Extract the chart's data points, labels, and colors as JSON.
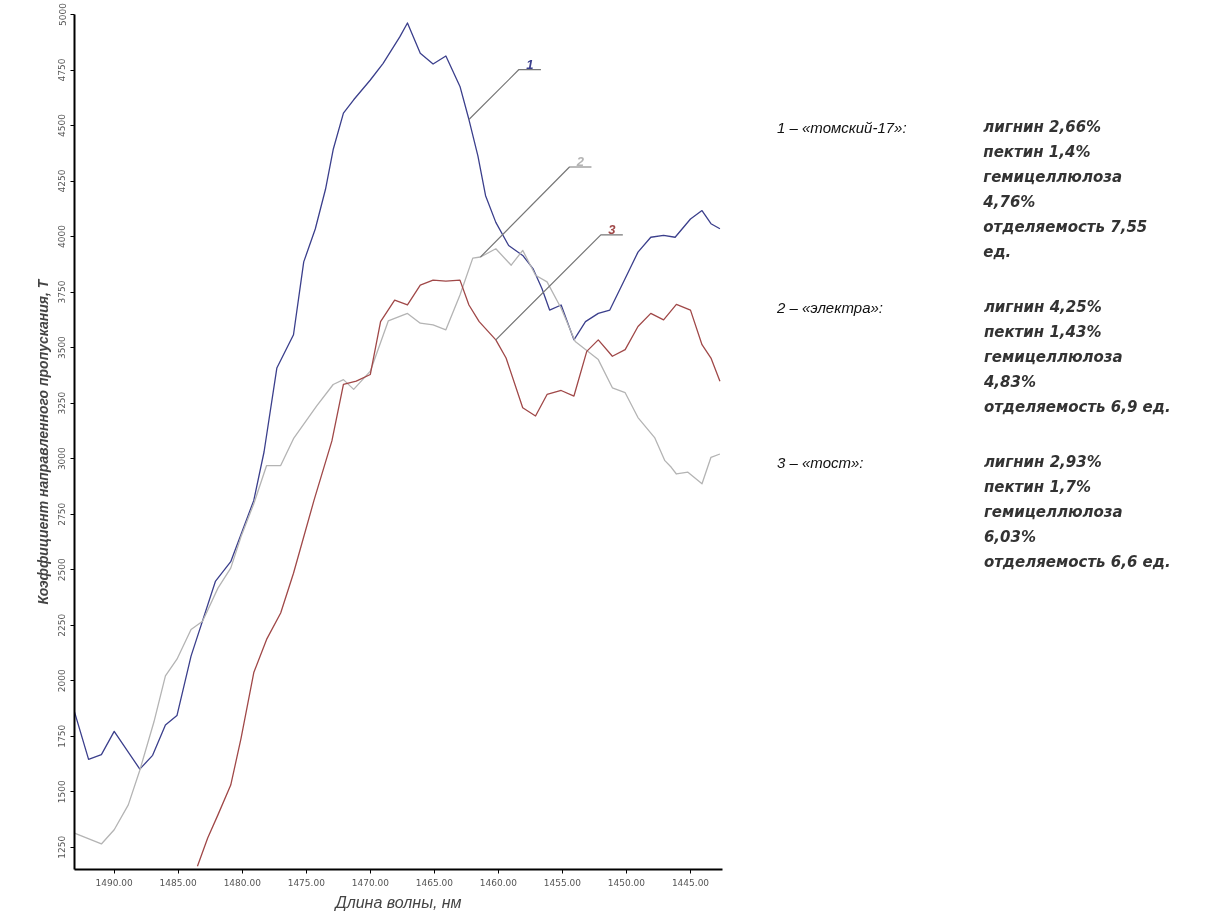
{
  "chart_data": {
    "type": "line",
    "xlabel": "Длина волны, нм",
    "ylabel": "Коэффициент направленного пропускания, T",
    "xlim": [
      1493.1,
      1442.5
    ],
    "ylim": [
      1150,
      5000
    ],
    "xticks": [
      {
        "value": 1490,
        "label": "1490.00"
      },
      {
        "value": 1485,
        "label": "1485.00"
      },
      {
        "value": 1480,
        "label": "1480.00"
      },
      {
        "value": 1475,
        "label": "1475.00"
      },
      {
        "value": 1470,
        "label": "1470.00"
      },
      {
        "value": 1465,
        "label": "1465.00"
      },
      {
        "value": 1460,
        "label": "1460.00"
      },
      {
        "value": 1455,
        "label": "1455.00"
      },
      {
        "value": 1450,
        "label": "1450.00"
      },
      {
        "value": 1445,
        "label": "1445.00"
      }
    ],
    "yticks": [
      1250,
      1500,
      1750,
      2000,
      2250,
      2500,
      2750,
      3000,
      3250,
      3500,
      3750,
      4000,
      4250,
      4500,
      4750,
      5000
    ],
    "grid": false,
    "series": [
      {
        "name": "1",
        "color": "#3b3f8c",
        "x": [
          1493.1,
          1492.0,
          1491.0,
          1490.0,
          1488.0,
          1487.0,
          1486.0,
          1485.1,
          1484.0,
          1482.1,
          1480.9,
          1479.1,
          1478.3,
          1477.3,
          1476.0,
          1475.2,
          1474.3,
          1473.5,
          1472.9,
          1472.1,
          1471.3,
          1470.0,
          1469.0,
          1467.7,
          1467.1,
          1466.1,
          1465.1,
          1464.1,
          1463.0,
          1462.3,
          1461.6,
          1461.0,
          1460.2,
          1459.2,
          1458.1,
          1457.3,
          1456.6,
          1456.0,
          1455.1,
          1454.1,
          1453.2,
          1452.2,
          1451.3,
          1450.1,
          1449.1,
          1448.1,
          1447.1,
          1446.2,
          1445.0,
          1444.1,
          1443.4,
          1442.7
        ],
        "values": [
          1860,
          1646,
          1667,
          1772,
          1602,
          1664,
          1801,
          1843,
          2111,
          2447,
          2536,
          2812,
          3030,
          3408,
          3558,
          3886,
          4034,
          4213,
          4392,
          4556,
          4616,
          4705,
          4780,
          4899,
          4962,
          4825,
          4777,
          4813,
          4676,
          4527,
          4363,
          4184,
          4064,
          3960,
          3915,
          3856,
          3766,
          3669,
          3692,
          3535,
          3617,
          3654,
          3669,
          3811,
          3930,
          3997,
          4005,
          3997,
          4079,
          4117,
          4058,
          4035
        ]
      },
      {
        "name": "2",
        "color": "#b4b4b4",
        "x": [
          1493.1,
          1491.0,
          1490.0,
          1488.9,
          1488.0,
          1486.9,
          1486.0,
          1485.1,
          1484.0,
          1483.1,
          1481.9,
          1480.9,
          1480.1,
          1479.1,
          1478.1,
          1477.0,
          1476.0,
          1474.2,
          1472.9,
          1472.1,
          1471.3,
          1470.0,
          1468.6,
          1467.1,
          1466.1,
          1465.1,
          1464.1,
          1463.0,
          1462.0,
          1461.4,
          1460.2,
          1459.0,
          1458.1,
          1457.1,
          1456.2,
          1455.1,
          1454.0,
          1452.2,
          1451.1,
          1450.1,
          1449.1,
          1447.8,
          1447.0,
          1446.5,
          1446.1,
          1445.2,
          1444.1,
          1443.4,
          1442.7
        ],
        "values": [
          1314,
          1265,
          1329,
          1441,
          1597,
          1814,
          2022,
          2097,
          2231,
          2268,
          2417,
          2507,
          2648,
          2797,
          2969,
          2969,
          3090,
          3237,
          3334,
          3356,
          3312,
          3394,
          3620,
          3654,
          3610,
          3602,
          3580,
          3737,
          3903,
          3908,
          3945,
          3871,
          3938,
          3826,
          3796,
          3677,
          3528,
          3446,
          3319,
          3297,
          3185,
          3095,
          2991,
          2961,
          2931,
          2939,
          2887,
          3006,
          3021
        ]
      },
      {
        "name": "3",
        "color": "#a04848",
        "x": [
          1483.5,
          1482.7,
          1481.9,
          1480.9,
          1480.1,
          1479.1,
          1478.1,
          1477.0,
          1476.0,
          1474.4,
          1473.0,
          1472.1,
          1471.1,
          1470.0,
          1469.2,
          1468.1,
          1467.1,
          1466.1,
          1465.1,
          1464.1,
          1463.0,
          1462.3,
          1461.5,
          1460.2,
          1459.4,
          1458.1,
          1457.1,
          1456.2,
          1455.1,
          1454.1,
          1453.1,
          1452.2,
          1451.1,
          1450.1,
          1449.1,
          1448.1,
          1447.1,
          1446.1,
          1445.0,
          1444.1,
          1443.4,
          1442.7
        ],
        "values": [
          1165,
          1292,
          1396,
          1530,
          1739,
          2037,
          2186,
          2305,
          2484,
          2812,
          3080,
          3334,
          3349,
          3379,
          3617,
          3714,
          3692,
          3781,
          3804,
          3799,
          3804,
          3692,
          3617,
          3535,
          3453,
          3229,
          3192,
          3289,
          3307,
          3282,
          3483,
          3535,
          3461,
          3491,
          3595,
          3654,
          3625,
          3695,
          3669,
          3513,
          3453,
          3349
        ]
      }
    ],
    "annotations": [
      "1 – «томский-17»:",
      "лигнин 2,66%",
      "пектин 1,4%",
      "гемицеллюлоза 4,76%",
      "отделяемость 7,55 ед.",
      "2 – «электра»:",
      "лигнин 4,25%",
      "пектин 1,43%",
      "гемицеллюлоза 4,83%",
      "отделяемость 6,9 ед.",
      "3 –  «тост»:",
      "лигнин 2,93%",
      "пектин 1,7%",
      "гемицеллюлоза 6,03%",
      "отделяемость 6,6 ед."
    ]
  }
}
